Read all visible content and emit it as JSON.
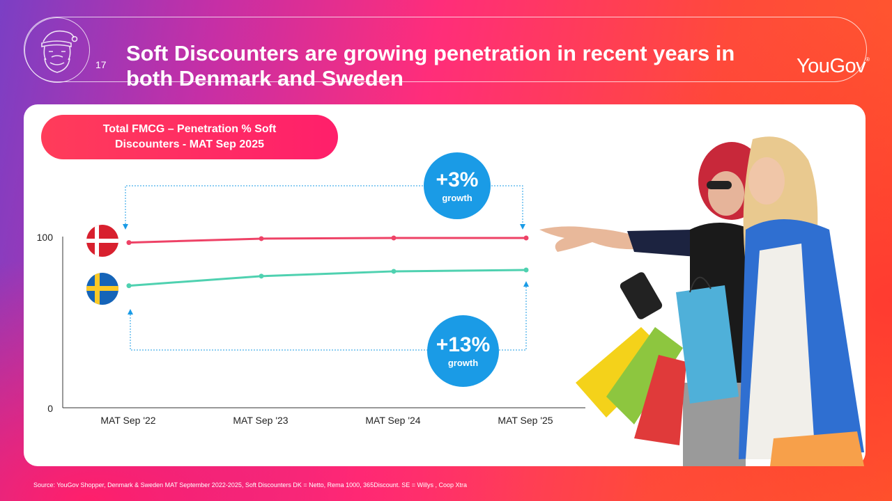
{
  "header": {
    "page_number": "17",
    "title": "Soft Discounters are growing penetration in recent years in both Denmark and Sweden",
    "logo": "YouGov",
    "logo_mark": "®"
  },
  "chart_title": "Total FMCG – Penetration % Soft Discounters - MAT Sep 2025",
  "callouts": [
    {
      "value": "+3%",
      "label": "growth",
      "color": "#1a9be6"
    },
    {
      "value": "+13%",
      "label": "growth",
      "color": "#1a9be6"
    }
  ],
  "chart_data": {
    "type": "line",
    "title": "Total FMCG – Penetration % Soft Discounters - MAT Sep 2025",
    "categories": [
      "MAT Sep '22",
      "MAT Sep '23",
      "MAT Sep '24",
      "MAT Sep '25"
    ],
    "ylim": [
      0,
      100
    ],
    "yticks": [
      "100",
      "0"
    ],
    "series": [
      {
        "name": "Denmark",
        "values": [
          96.5,
          98.8,
          99.2,
          99.2
        ],
        "color": "#ee4266"
      },
      {
        "name": "Sweden",
        "values": [
          71.3,
          76.9,
          79.7,
          80.5
        ],
        "color": "#4fd1b0"
      }
    ],
    "grid": false
  },
  "source": "Source: YouGov Shopper, Denmark & Sweden MAT September 2022-2025, Soft Discounters DK = Netto, Rema 1000, 365Discount. SE = Willys , Coop Xtra"
}
